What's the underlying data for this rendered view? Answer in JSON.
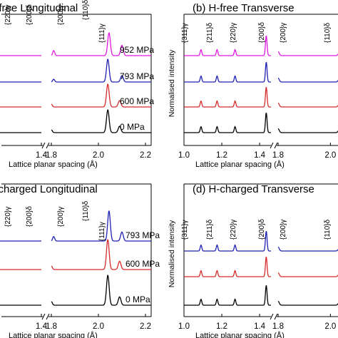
{
  "colors": {
    "0 MPa": "#000000",
    "600 MPa": "#d62b2b",
    "793 MPa": "#1f22b4",
    "952 MPa": "#e018e0"
  },
  "chart_data": [
    {
      "type": "line",
      "title": "(a) H-free Longitudinal",
      "xlabel": "Lattice planar spacing (Å)",
      "ylabel": "",
      "x_ticks": [
        "1.4",
        "1.8",
        "2.0",
        "2.2"
      ],
      "axis_break_between": [
        1.4,
        1.8
      ],
      "xlim": [
        1.0,
        2.2
      ],
      "series": [
        {
          "name": "0 MPa",
          "color": "#000000",
          "peaks": [
            {
              "x": 1.27,
              "h": 0.03
            },
            {
              "x": 1.44,
              "h": 0.03
            },
            {
              "x": 1.8,
              "h": 0.12
            },
            {
              "x": 2.04,
              "h": 1.0
            },
            {
              "x": 2.09,
              "h": 0.28
            }
          ]
        },
        {
          "name": "600 MPa",
          "color": "#d62b2b",
          "peaks": [
            {
              "x": 1.27,
              "h": 0.03
            },
            {
              "x": 1.44,
              "h": 0.03
            },
            {
              "x": 1.8,
              "h": 0.12
            },
            {
              "x": 2.04,
              "h": 1.0
            },
            {
              "x": 2.09,
              "h": 0.28
            }
          ]
        },
        {
          "name": "793 MPa",
          "color": "#1f22b4",
          "peaks": [
            {
              "x": 1.27,
              "h": 0.03
            },
            {
              "x": 1.44,
              "h": 0.03
            },
            {
              "x": 1.81,
              "h": 0.12
            },
            {
              "x": 2.04,
              "h": 1.0
            },
            {
              "x": 2.1,
              "h": 0.28
            }
          ]
        },
        {
          "name": "952 MPa",
          "color": "#e018e0",
          "peaks": [
            {
              "x": 1.27,
              "h": 0.05
            },
            {
              "x": 1.44,
              "h": 0.05
            },
            {
              "x": 1.81,
              "h": 0.22
            },
            {
              "x": 2.045,
              "h": 1.0
            },
            {
              "x": 2.1,
              "h": 0.45
            }
          ]
        }
      ],
      "peak_labels": [
        "{220}γ",
        "{200}δ",
        "{200}γ",
        "{110}δ",
        "{111}γ"
      ]
    },
    {
      "type": "line",
      "title": "(b) H-free Transverse",
      "xlabel": "Lattice planar spacing (Å)",
      "ylabel": "Normalised intensity",
      "x_ticks": [
        "1.0",
        "1.2",
        "1.4",
        "1.8",
        "2.0"
      ],
      "axis_break_between": [
        1.4,
        1.8
      ],
      "xlim": [
        1.0,
        2.1
      ],
      "series": [
        {
          "name": "0 MPa",
          "color": "#000000",
          "peaks": [
            {
              "x": 1.09,
              "h": 0.3
            },
            {
              "x": 1.175,
              "h": 0.3
            },
            {
              "x": 1.27,
              "h": 0.3
            },
            {
              "x": 1.435,
              "h": 1.0
            },
            {
              "x": 1.8,
              "h": 0.2
            },
            {
              "x": 2.04,
              "h": 0.55
            }
          ]
        },
        {
          "name": "600 MPa",
          "color": "#d62b2b",
          "peaks": [
            {
              "x": 1.09,
              "h": 0.3
            },
            {
              "x": 1.175,
              "h": 0.3
            },
            {
              "x": 1.27,
              "h": 0.3
            },
            {
              "x": 1.435,
              "h": 1.0
            },
            {
              "x": 1.8,
              "h": 0.2
            },
            {
              "x": 2.04,
              "h": 0.55
            }
          ]
        },
        {
          "name": "793 MPa",
          "color": "#1f22b4",
          "peaks": [
            {
              "x": 1.09,
              "h": 0.3
            },
            {
              "x": 1.175,
              "h": 0.3
            },
            {
              "x": 1.27,
              "h": 0.3
            },
            {
              "x": 1.435,
              "h": 1.0
            },
            {
              "x": 1.8,
              "h": 0.2
            },
            {
              "x": 2.04,
              "h": 0.55
            }
          ]
        },
        {
          "name": "952 MPa",
          "color": "#e018e0",
          "peaks": [
            {
              "x": 1.09,
              "h": 0.3
            },
            {
              "x": 1.175,
              "h": 0.3
            },
            {
              "x": 1.27,
              "h": 0.3
            },
            {
              "x": 1.435,
              "h": 1.0
            },
            {
              "x": 1.8,
              "h": 0.2
            },
            {
              "x": 2.04,
              "h": 0.55
            }
          ]
        }
      ],
      "peak_labels": [
        "{311}γ",
        "{211}δ",
        "{220}γ",
        "{200}δ",
        "{200}γ",
        "{110}δ"
      ]
    },
    {
      "type": "line",
      "title": "(c) H-charged Longitudinal",
      "xlabel": "Lattice planar spacing (Å)",
      "ylabel": "",
      "x_ticks": [
        "1.4",
        "1.8",
        "2.0",
        "2.2"
      ],
      "axis_break_between": [
        1.4,
        1.8
      ],
      "xlim": [
        1.0,
        2.2
      ],
      "series": [
        {
          "name": "0 MPa",
          "color": "#000000",
          "peaks": [
            {
              "x": 1.27,
              "h": 0.03
            },
            {
              "x": 1.44,
              "h": 0.03
            },
            {
              "x": 1.8,
              "h": 0.12
            },
            {
              "x": 2.04,
              "h": 1.0
            },
            {
              "x": 2.09,
              "h": 0.28
            }
          ]
        },
        {
          "name": "600 MPa",
          "color": "#d62b2b",
          "peaks": [
            {
              "x": 1.27,
              "h": 0.03
            },
            {
              "x": 1.44,
              "h": 0.03
            },
            {
              "x": 1.8,
              "h": 0.12
            },
            {
              "x": 2.04,
              "h": 1.0
            },
            {
              "x": 2.09,
              "h": 0.28
            }
          ]
        },
        {
          "name": "793 MPa",
          "color": "#1f22b4",
          "peaks": [
            {
              "x": 1.27,
              "h": 0.05
            },
            {
              "x": 1.44,
              "h": 0.05
            },
            {
              "x": 1.81,
              "h": 0.15
            },
            {
              "x": 2.045,
              "h": 1.0
            },
            {
              "x": 2.1,
              "h": 0.3
            }
          ]
        }
      ],
      "peak_labels": [
        "{220}γ",
        "{200}δ",
        "{200}γ",
        "{110}δ",
        "{111}γ"
      ]
    },
    {
      "type": "line",
      "title": "(d) H-charged Transverse",
      "xlabel": "Lattice planar spacing (Å)",
      "ylabel": "Normalised intensity",
      "x_ticks": [
        "1.0",
        "1.2",
        "1.4",
        "1.8",
        "2.0"
      ],
      "axis_break_between": [
        1.4,
        1.8
      ],
      "xlim": [
        1.0,
        2.1
      ],
      "series": [
        {
          "name": "0 MPa",
          "color": "#000000",
          "peaks": [
            {
              "x": 1.09,
              "h": 0.3
            },
            {
              "x": 1.175,
              "h": 0.3
            },
            {
              "x": 1.27,
              "h": 0.3
            },
            {
              "x": 1.435,
              "h": 1.0
            },
            {
              "x": 1.8,
              "h": 0.2
            },
            {
              "x": 2.04,
              "h": 0.55
            }
          ]
        },
        {
          "name": "600 MPa",
          "color": "#d62b2b",
          "peaks": [
            {
              "x": 1.09,
              "h": 0.3
            },
            {
              "x": 1.175,
              "h": 0.3
            },
            {
              "x": 1.27,
              "h": 0.3
            },
            {
              "x": 1.435,
              "h": 1.0
            },
            {
              "x": 1.8,
              "h": 0.2
            },
            {
              "x": 2.04,
              "h": 0.55
            }
          ]
        },
        {
          "name": "793 MPa",
          "color": "#1f22b4",
          "peaks": [
            {
              "x": 1.09,
              "h": 0.3
            },
            {
              "x": 1.175,
              "h": 0.3
            },
            {
              "x": 1.27,
              "h": 0.3
            },
            {
              "x": 1.435,
              "h": 1.0
            },
            {
              "x": 1.8,
              "h": 0.2
            },
            {
              "x": 2.04,
              "h": 0.55
            }
          ]
        }
      ],
      "peak_labels": [
        "{311}γ",
        "{211}δ",
        "{220}γ",
        "{200}δ",
        "{200}γ",
        "{110}δ"
      ]
    }
  ]
}
